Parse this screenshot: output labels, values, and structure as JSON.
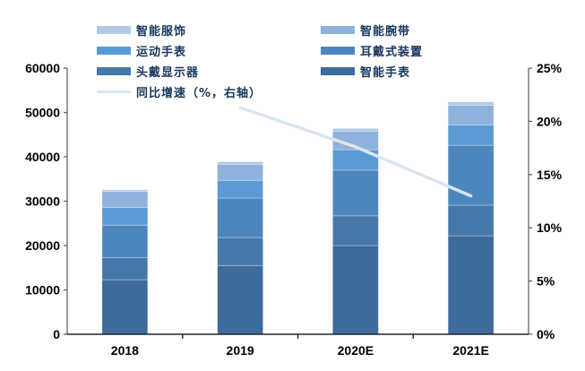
{
  "chart_data": {
    "type": "bar",
    "stacked": true,
    "title": "",
    "xlabel": "",
    "ylabel": "",
    "grid": false,
    "legend_position": "top",
    "categories": [
      "2018",
      "2019",
      "2020E",
      "2021E"
    ],
    "series": [
      {
        "name": "智能手表",
        "color": "#3c6b9c",
        "values": [
          12300,
          15500,
          20000,
          22200
        ]
      },
      {
        "name": "头戴显示器",
        "color": "#4678aa",
        "values": [
          5000,
          6300,
          6700,
          6900
        ]
      },
      {
        "name": "耳戴式装置",
        "color": "#4d86bf",
        "values": [
          7300,
          8900,
          10300,
          13500
        ]
      },
      {
        "name": "运动手表",
        "color": "#5b9bd5",
        "values": [
          4000,
          4000,
          4600,
          4600
        ]
      },
      {
        "name": "智能腕带",
        "color": "#8fb2dc",
        "values": [
          3600,
          3600,
          4200,
          4400
        ]
      },
      {
        "name": "智能服饰",
        "color": "#b3c9e6",
        "values": [
          400,
          600,
          600,
          800
        ]
      }
    ],
    "totals": [
      32600,
      38900,
      46400,
      52400
    ],
    "line_series": {
      "name": "同比增速（%，右轴）",
      "color": "#dbe5f1",
      "axis": "right",
      "values": [
        null,
        21.3,
        17.6,
        13.0
      ]
    },
    "left_axis": {
      "min": 0,
      "max": 60000,
      "step": 10000,
      "tick_labels": [
        "0",
        "10000",
        "20000",
        "30000",
        "40000",
        "50000",
        "60000"
      ]
    },
    "right_axis": {
      "min": 0,
      "max": 25,
      "step": 5,
      "tick_labels": [
        "0%",
        "5%",
        "10%",
        "15%",
        "20%",
        "25%"
      ]
    }
  },
  "legend": {
    "columns": [
      {
        "items": [
          {
            "label": "智能服饰",
            "color": "#b3c9e6",
            "type": "box"
          },
          {
            "label": "运动手表",
            "color": "#5b9bd5",
            "type": "box"
          },
          {
            "label": "头戴显示器",
            "color": "#4678aa",
            "type": "box"
          },
          {
            "label": "同比增速（%，右轴）",
            "color": "#dbe5f1",
            "type": "line"
          }
        ]
      },
      {
        "items": [
          {
            "label": "智能腕带",
            "color": "#8fb2dc",
            "type": "box"
          },
          {
            "label": "耳戴式装置",
            "color": "#4d86bf",
            "type": "box"
          },
          {
            "label": "智能手表",
            "color": "#3c6b9c",
            "type": "box"
          }
        ]
      }
    ]
  },
  "colors": {
    "axis_line": "#595959",
    "bottom_axis_line": "#262626",
    "tick_label": "#000000",
    "legend_text": "#17365d"
  }
}
